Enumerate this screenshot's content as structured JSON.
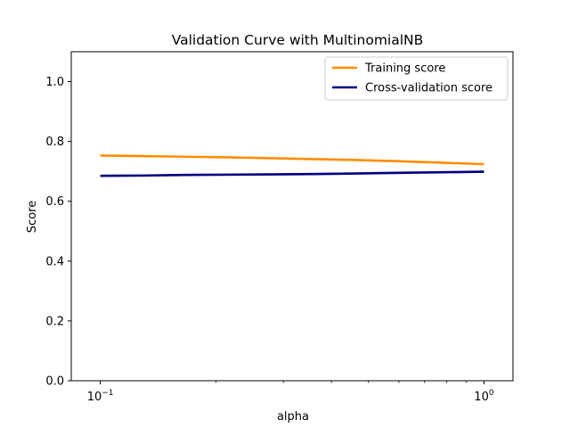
{
  "chart_data": {
    "type": "line",
    "title": "Validation Curve with MultinomialNB",
    "xlabel": "alpha",
    "ylabel": "Score",
    "xscale": "log",
    "xlim": [
      0.084,
      1.19
    ],
    "ylim": [
      0.0,
      1.1
    ],
    "x_ticks": [
      {
        "value": 0.1,
        "base": "10",
        "exp": "−1"
      },
      {
        "value": 1.0,
        "base": "10",
        "exp": "0"
      }
    ],
    "y_ticks": [
      {
        "value": 0.0,
        "label": "0.0"
      },
      {
        "value": 0.2,
        "label": "0.2"
      },
      {
        "value": 0.4,
        "label": "0.4"
      },
      {
        "value": 0.6,
        "label": "0.6"
      },
      {
        "value": 0.8,
        "label": "0.8"
      },
      {
        "value": 1.0,
        "label": "1.0"
      }
    ],
    "x_minor_ticks": [
      0.2,
      0.3,
      0.4,
      0.5,
      0.6,
      0.7,
      0.8,
      0.9
    ],
    "x": [
      0.1,
      0.1292,
      0.1668,
      0.2154,
      0.2783,
      0.3594,
      0.4642,
      0.5995,
      0.7743,
      1.0
    ],
    "series": [
      {
        "name": "Training score",
        "color": "#ff8c00",
        "values": [
          0.753,
          0.751,
          0.749,
          0.747,
          0.744,
          0.741,
          0.738,
          0.734,
          0.729,
          0.724
        ],
        "band": 0.002
      },
      {
        "name": "Cross-validation score",
        "color": "#000080",
        "values": [
          0.685,
          0.686,
          0.688,
          0.689,
          0.69,
          0.691,
          0.693,
          0.695,
          0.697,
          0.699
        ],
        "band": 0.004
      }
    ],
    "grid": false,
    "legend_position": "top-right"
  }
}
